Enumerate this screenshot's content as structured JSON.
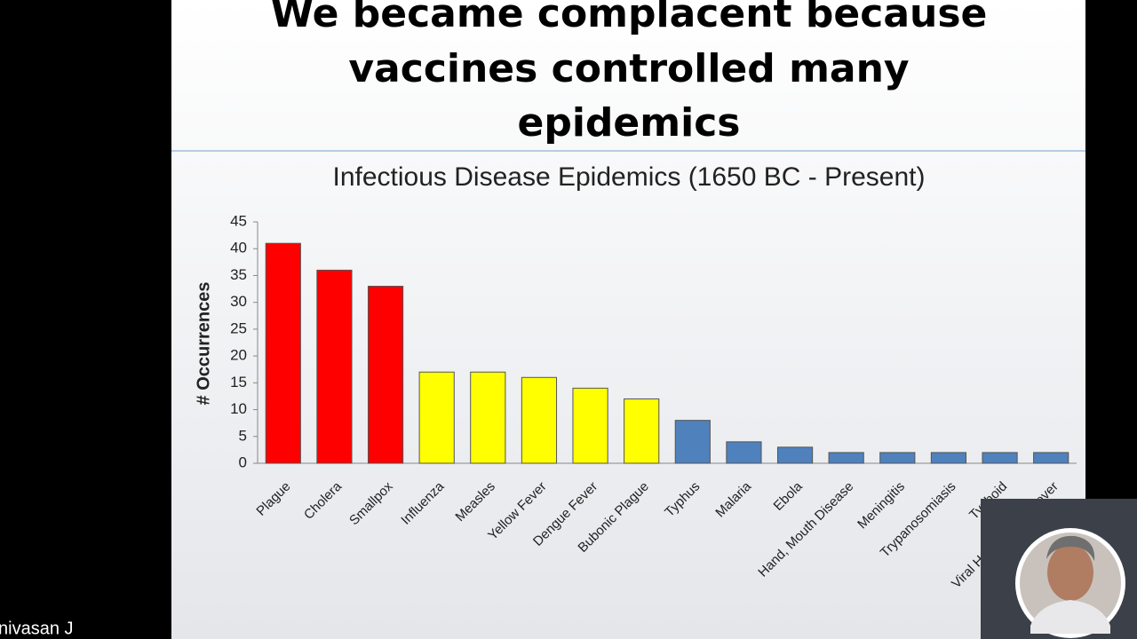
{
  "slide": {
    "title_lines": [
      "We became  complacent because",
      "vaccines controlled many",
      "epidemics"
    ]
  },
  "participant": {
    "name": "nivasan J"
  },
  "chart_data": {
    "type": "bar",
    "title": "Infectious Disease Epidemics (1650 BC - Present)",
    "y_label": "# Occurrences",
    "categories": [
      "Plague",
      "Cholera",
      "Smallpox",
      "Influenza",
      "Measles",
      "Yellow Fever",
      "Dengue Fever",
      "Bubonic Plague",
      "Typhus",
      "Malaria",
      "Ebola",
      "Hand, Mouth Disease",
      "Meningitis",
      "Trypanosomiasis",
      "Typhoid",
      "Viral Hemorrhagic Fever"
    ],
    "values": [
      41,
      36,
      33,
      17,
      17,
      16,
      14,
      12,
      8,
      4,
      3,
      2,
      2,
      2,
      2,
      2
    ],
    "colors": [
      "#ff0000",
      "#ff0000",
      "#ff0000",
      "#ffff00",
      "#ffff00",
      "#ffff00",
      "#ffff00",
      "#ffff00",
      "#4f81bd",
      "#4f81bd",
      "#4f81bd",
      "#4f81bd",
      "#4f81bd",
      "#4f81bd",
      "#4f81bd",
      "#4f81bd"
    ],
    "ylim": [
      0,
      45
    ],
    "yticks": [
      0,
      5,
      10,
      15,
      20,
      25,
      30,
      35,
      40,
      45
    ],
    "grid": false
  }
}
